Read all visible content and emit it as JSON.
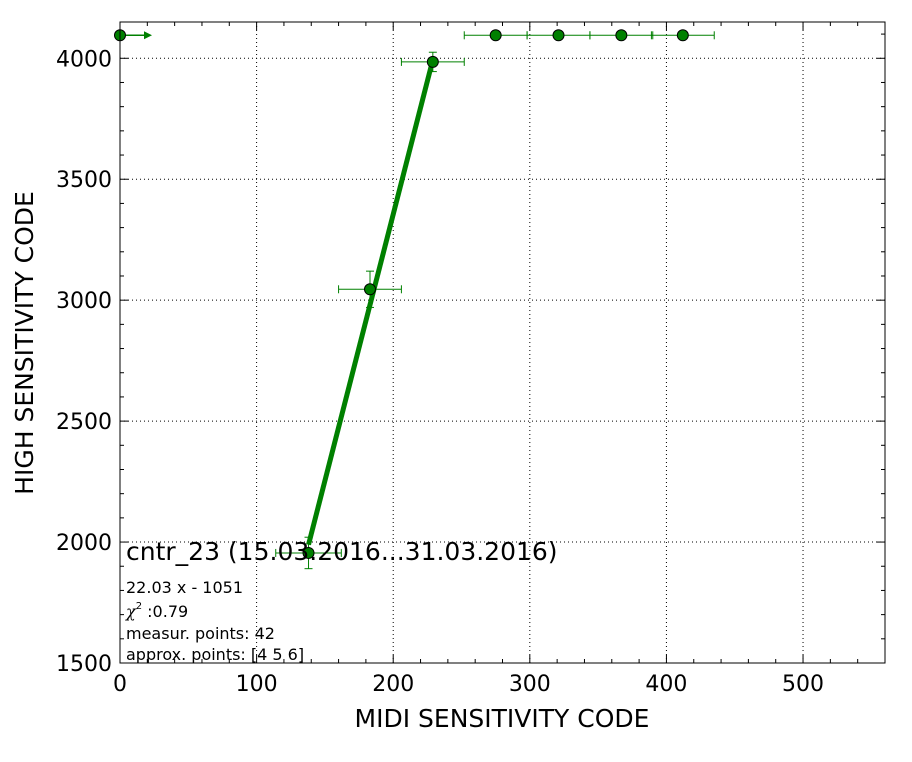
{
  "chart_data": {
    "type": "scatter",
    "xlabel": "MIDI SENSITIVITY CODE",
    "ylabel": "HIGH SENSITIVITY CODE",
    "xlim": [
      0,
      560
    ],
    "ylim": [
      1500,
      4150
    ],
    "xticks": [
      0,
      100,
      200,
      300,
      400,
      500
    ],
    "yticks": [
      1500,
      2000,
      2500,
      3000,
      3500,
      4000
    ],
    "grid": true,
    "color": "#008000",
    "points": [
      {
        "x": 0,
        "y": 4095
      },
      {
        "x": 138,
        "y": 1955,
        "xerr": 24,
        "yerr": 65
      },
      {
        "x": 183,
        "y": 3045,
        "xerr": 23,
        "yerr": 75
      },
      {
        "x": 229,
        "y": 3985,
        "xerr": 23,
        "yerr": 40
      },
      {
        "x": 275,
        "y": 4095,
        "xerr": 23
      },
      {
        "x": 321,
        "y": 4095,
        "xerr": 23
      },
      {
        "x": 367,
        "y": 4095,
        "xerr": 23
      },
      {
        "x": 412,
        "y": 4095,
        "xerr": 23
      }
    ],
    "fit": {
      "slope": 22.03,
      "intercept": -1051,
      "x_range": [
        138,
        229
      ]
    },
    "annotations": {
      "title": "cntr_23 (15.03.2016...31.03.2016)",
      "equation": "22.03 x - 1051",
      "chi_symbol": "χ",
      "chi_exponent": "2",
      "chi_value": " :0.79",
      "measur": "measur. points: 42",
      "approx": "approx. points: [4 5 6]"
    }
  }
}
